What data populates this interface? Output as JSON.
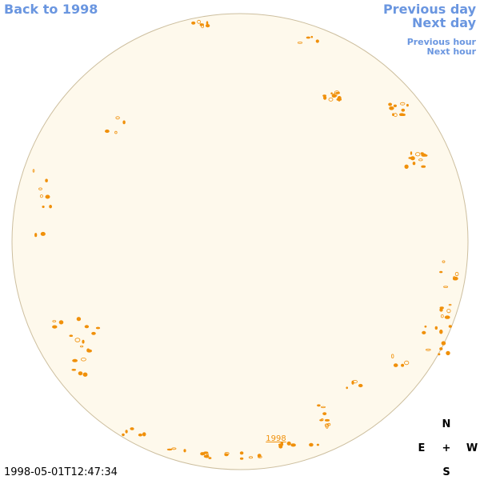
{
  "nav": {
    "back": "Back to 1998",
    "previous_day": "Previous day",
    "next_day": "Next day",
    "previous_hour": "Previous hour",
    "next_hour": "Next hour"
  },
  "disc_label": "1998",
  "compass": {
    "north": "N",
    "east": "E",
    "center": "+",
    "west": "W",
    "south": "S"
  },
  "timestamp": "1998-05-01T12:47:34"
}
